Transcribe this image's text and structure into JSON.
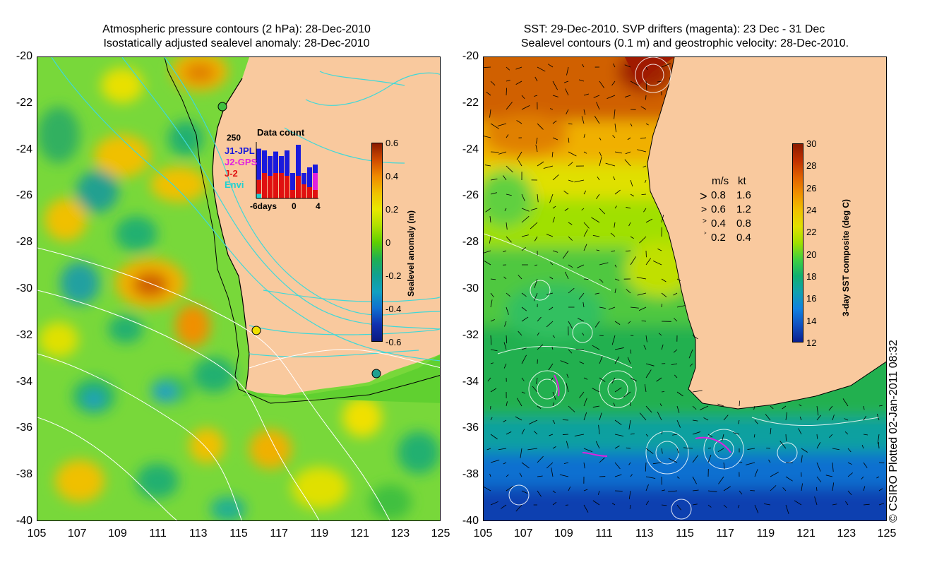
{
  "left_panel": {
    "title_line1": "Atmospheric pressure contours (2 hPa): 28-Dec-2010",
    "title_line2": "Isostatically adjusted sealevel anomaly: 28-Dec-2010",
    "y_ticks": [
      "-20",
      "-22",
      "-24",
      "-26",
      "-28",
      "-30",
      "-32",
      "-34",
      "-36",
      "-38",
      "-40"
    ],
    "x_ticks": [
      "105",
      "107",
      "109",
      "111",
      "113",
      "115",
      "117",
      "119",
      "121",
      "123",
      "125"
    ],
    "colorbar": {
      "label": "Sealevel anomaly (m)",
      "ticks": [
        "0.6",
        "0.4",
        "0.2",
        "0",
        "-0.2",
        "-0.4",
        "-0.6"
      ],
      "colors": [
        "#8b1a00",
        "#d04a00",
        "#f08a00",
        "#f0c000",
        "#e8e800",
        "#b0e000",
        "#60d000",
        "#20b050",
        "#10a090",
        "#10a0c0",
        "#1070d0",
        "#1030b0",
        "#0a1a80"
      ]
    },
    "data_count": {
      "title": "Data count",
      "max_label": "250",
      "missions": [
        {
          "name": "J1-JPL",
          "color": "#1a1adc"
        },
        {
          "name": "J2-GPS",
          "color": "#e020e0"
        },
        {
          "name": "J-2",
          "color": "#e01010"
        },
        {
          "name": "Envi",
          "color": "#20d0d0"
        }
      ],
      "x_labels": [
        "-6days",
        "0",
        "4"
      ],
      "bars": [
        {
          "blue": 0.55,
          "red": 0.25,
          "magenta": 0.0,
          "cyan": 0.08
        },
        {
          "blue": 0.4,
          "red": 0.45,
          "magenta": 0.0,
          "cyan": 0.0
        },
        {
          "blue": 0.35,
          "red": 0.4,
          "magenta": 0.0,
          "cyan": 0.0
        },
        {
          "blue": 0.38,
          "red": 0.45,
          "magenta": 0.0,
          "cyan": 0.0
        },
        {
          "blue": 0.3,
          "red": 0.45,
          "magenta": 0.0,
          "cyan": 0.0
        },
        {
          "blue": 0.45,
          "red": 0.4,
          "magenta": 0.0,
          "cyan": 0.0
        },
        {
          "blue": 0.3,
          "red": 0.15,
          "magenta": 0.0,
          "cyan": 0.0
        },
        {
          "blue": 0.55,
          "red": 0.4,
          "magenta": 0.0,
          "cyan": 0.0
        },
        {
          "blue": 0.2,
          "red": 0.25,
          "magenta": 0.0,
          "cyan": 0.0
        },
        {
          "blue": 0.35,
          "red": 0.2,
          "magenta": 0.0,
          "cyan": 0.0
        },
        {
          "blue": 0.15,
          "red": 0.15,
          "magenta": 0.3,
          "cyan": 0.0
        }
      ]
    }
  },
  "right_panel": {
    "title_line1": "SST: 29-Dec-2010. SVP drifters (magenta): 23 Dec - 31 Dec",
    "title_line2": "Sealevel contours (0.1 m) and geostrophic velocity: 28-Dec-2010.",
    "y_ticks": [
      "-20",
      "-22",
      "-24",
      "-26",
      "-28",
      "-30",
      "-32",
      "-34",
      "-36",
      "-38",
      "-40"
    ],
    "x_ticks": [
      "105",
      "107",
      "109",
      "111",
      "113",
      "115",
      "117",
      "119",
      "121",
      "123",
      "125"
    ],
    "colorbar": {
      "label": "3-day SST composite (deg C)",
      "ticks": [
        "30",
        "28",
        "26",
        "24",
        "22",
        "20",
        "18",
        "16",
        "14",
        "12"
      ],
      "colors": [
        "#8b1a00",
        "#c03000",
        "#e06000",
        "#f09000",
        "#f0c000",
        "#e0e000",
        "#a0e000",
        "#40d040",
        "#10b070",
        "#10a0b0",
        "#1080e0",
        "#1050c0",
        "#0a2090"
      ]
    },
    "velocity_legend": {
      "header_ms": "m/s",
      "header_kt": "kt",
      "rows": [
        {
          "ms": "0.8",
          "kt": "1.6"
        },
        {
          "ms": "0.6",
          "kt": "1.2"
        },
        {
          "ms": "0.4",
          "kt": "0.8"
        },
        {
          "ms": "0.2",
          "kt": "0.4"
        }
      ]
    }
  },
  "credit": "© CSIRO Plotted 02-Jan-2011 08:32",
  "colors": {
    "land": "#f9c99e",
    "coast": "#000000",
    "contour_cyan": "#40d8d8",
    "contour_white": "#ffffff"
  }
}
